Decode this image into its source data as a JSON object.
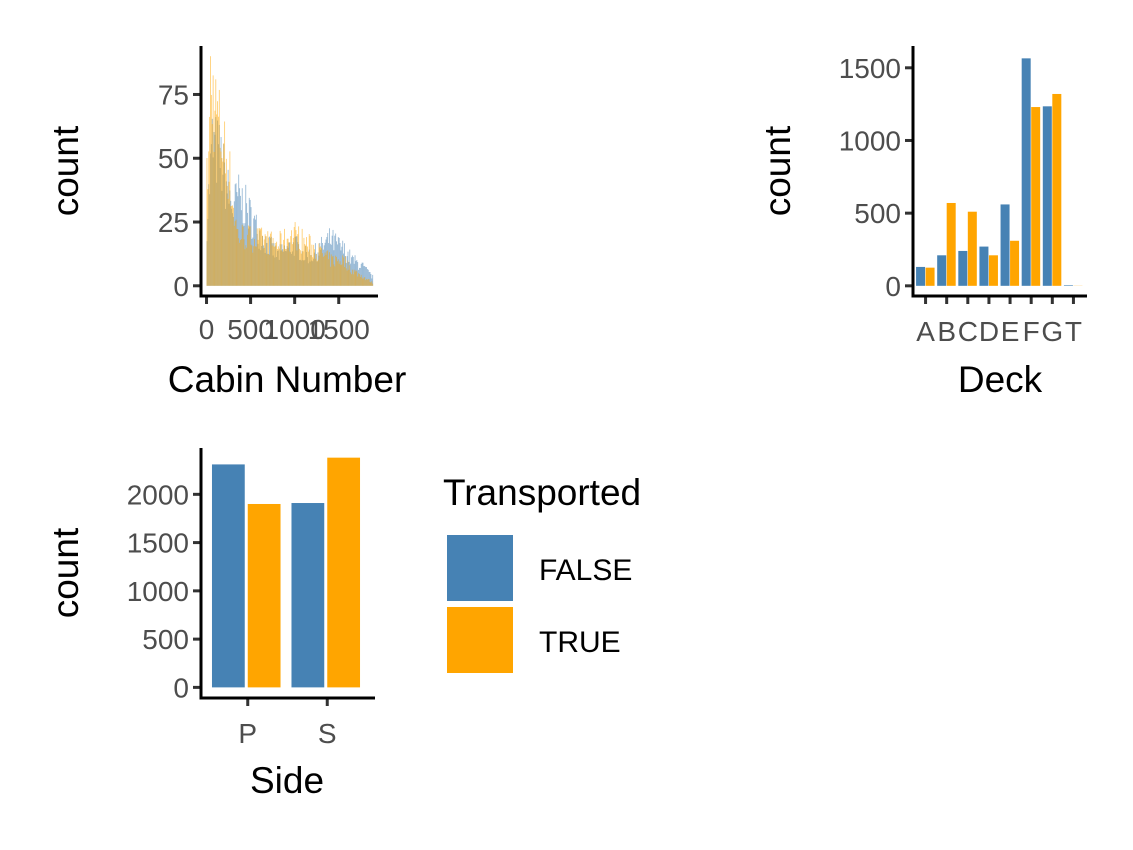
{
  "colors": {
    "false": "#4682B4",
    "true": "#FFA500"
  },
  "legend": {
    "title": "Transported",
    "items": [
      {
        "label": "FALSE",
        "color": "#4682B4"
      },
      {
        "label": "TRUE",
        "color": "#FFA500"
      }
    ]
  },
  "chart_data": [
    {
      "type": "bar",
      "subtype": "histogram",
      "xlabel": "Cabin Number",
      "ylabel": "count",
      "xticks": [
        "0",
        "500",
        "1000",
        "1500"
      ],
      "xtick_values": [
        0,
        500,
        1000,
        1500
      ],
      "yticks": [
        "0",
        "25",
        "50",
        "75"
      ],
      "ytick_values": [
        0,
        25,
        50,
        75
      ],
      "xlim": [
        -40,
        1900
      ],
      "ylim": [
        -4,
        94
      ],
      "bin_width": 10,
      "density_profile": [
        {
          "x": 0,
          "false": 25,
          "true": 40
        },
        {
          "x": 60,
          "false": 55,
          "true": 75
        },
        {
          "x": 150,
          "false": 50,
          "true": 60
        },
        {
          "x": 250,
          "false": 35,
          "true": 45
        },
        {
          "x": 300,
          "false": 30,
          "true": 30
        },
        {
          "x": 350,
          "false": 35,
          "true": 20
        },
        {
          "x": 450,
          "false": 30,
          "true": 19
        },
        {
          "x": 600,
          "false": 20,
          "true": 18
        },
        {
          "x": 800,
          "false": 12,
          "true": 16
        },
        {
          "x": 1000,
          "false": 16,
          "true": 20
        },
        {
          "x": 1100,
          "false": 12,
          "true": 17
        },
        {
          "x": 1200,
          "false": 12,
          "true": 15
        },
        {
          "x": 1400,
          "false": 18,
          "true": 10
        },
        {
          "x": 1550,
          "false": 14,
          "true": 10
        },
        {
          "x": 1650,
          "false": 10,
          "true": 6
        },
        {
          "x": 1750,
          "false": 8,
          "true": 4
        },
        {
          "x": 1890,
          "false": 3,
          "true": 1
        }
      ],
      "peak": {
        "x": 40,
        "true": 90
      }
    },
    {
      "type": "bar",
      "subtype": "grouped",
      "xlabel": "Deck",
      "ylabel": "count",
      "categories": [
        "A",
        "B",
        "C",
        "D",
        "E",
        "F",
        "G",
        "T"
      ],
      "series": [
        {
          "name": "FALSE",
          "values": [
            130,
            210,
            240,
            270,
            560,
            1565,
            1235,
            4
          ]
        },
        {
          "name": "TRUE",
          "values": [
            125,
            570,
            510,
            210,
            310,
            1230,
            1320,
            1
          ]
        }
      ],
      "yticks": [
        "0",
        "500",
        "1000",
        "1500"
      ],
      "ytick_values": [
        0,
        500,
        1000,
        1500
      ],
      "ylim": [
        -70,
        1650
      ]
    },
    {
      "type": "bar",
      "subtype": "grouped",
      "xlabel": "Side",
      "ylabel": "count",
      "categories": [
        "P",
        "S"
      ],
      "series": [
        {
          "name": "FALSE",
          "values": [
            2310,
            1910
          ]
        },
        {
          "name": "TRUE",
          "values": [
            1900,
            2380
          ]
        }
      ],
      "yticks": [
        "0",
        "500",
        "1000",
        "1500",
        "2000"
      ],
      "ytick_values": [
        0,
        500,
        1000,
        1500,
        2000
      ],
      "ylim": [
        -110,
        2480
      ]
    }
  ]
}
